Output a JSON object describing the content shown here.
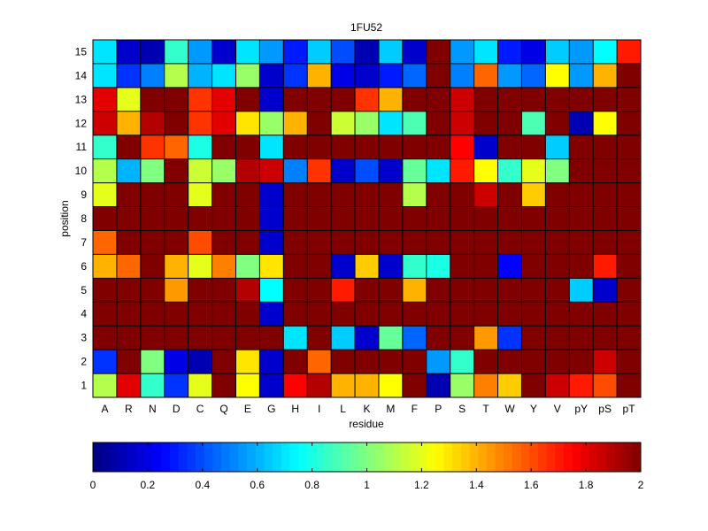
{
  "chart_data": {
    "type": "heatmap",
    "title": "1FU52",
    "xlabel": "residue",
    "ylabel": "position",
    "x_categories": [
      "A",
      "R",
      "N",
      "D",
      "C",
      "Q",
      "E",
      "G",
      "H",
      "I",
      "L",
      "K",
      "M",
      "F",
      "P",
      "S",
      "T",
      "W",
      "Y",
      "V",
      "pY",
      "pS",
      "pT"
    ],
    "y_categories": [
      "1",
      "2",
      "3",
      "4",
      "5",
      "6",
      "7",
      "8",
      "9",
      "10",
      "11",
      "12",
      "13",
      "14",
      "15"
    ],
    "color_range": [
      0,
      2
    ],
    "colormap": "jet",
    "colorbar_ticks": [
      "0",
      "0.2",
      "0.4",
      "0.6",
      "0.8",
      "1",
      "1.2",
      "1.4",
      "1.6",
      "1.8",
      "2"
    ],
    "values": [
      [
        1.1,
        1.8,
        0.85,
        0.35,
        1.2,
        2.0,
        1.25,
        0.15,
        1.75,
        1.9,
        1.4,
        1.4,
        1.25,
        2.0,
        0.1,
        1.05,
        1.5,
        1.35,
        2.0,
        1.85,
        1.7,
        1.6,
        2.0
      ],
      [
        0.35,
        2.0,
        1.0,
        0.2,
        0.1,
        2.0,
        1.3,
        0.15,
        2.0,
        1.55,
        2.0,
        2.0,
        2.0,
        2.0,
        0.55,
        0.85,
        2.0,
        2.0,
        2.0,
        2.0,
        2.0,
        1.85,
        2.0
      ],
      [
        2.0,
        2.0,
        2.0,
        2.0,
        2.0,
        2.0,
        2.0,
        2.0,
        0.7,
        2.0,
        0.65,
        0.15,
        0.95,
        0.45,
        2.0,
        2.0,
        1.45,
        0.35,
        2.0,
        2.0,
        2.0,
        2.0,
        2.0
      ],
      [
        2.0,
        2.0,
        2.0,
        2.0,
        2.0,
        2.0,
        2.0,
        0.15,
        2.0,
        2.0,
        2.0,
        2.0,
        2.0,
        2.0,
        2.0,
        2.0,
        2.0,
        2.0,
        2.0,
        2.0,
        2.0,
        2.0,
        2.0
      ],
      [
        2.0,
        2.0,
        2.0,
        1.45,
        2.0,
        2.0,
        1.9,
        0.75,
        2.0,
        2.0,
        1.7,
        2.0,
        2.0,
        1.4,
        2.0,
        2.0,
        2.0,
        2.0,
        2.0,
        2.0,
        0.65,
        0.15,
        2.0
      ],
      [
        1.4,
        1.55,
        2.0,
        1.4,
        1.2,
        1.5,
        1.0,
        1.3,
        2.0,
        2.0,
        0.15,
        1.35,
        0.15,
        0.85,
        0.8,
        2.0,
        2.0,
        0.25,
        2.0,
        2.0,
        2.0,
        1.7,
        2.0
      ],
      [
        1.55,
        2.0,
        2.0,
        2.0,
        1.6,
        2.0,
        2.0,
        0.15,
        2.0,
        2.0,
        2.0,
        2.0,
        2.0,
        2.0,
        2.0,
        2.0,
        2.0,
        2.0,
        2.0,
        2.0,
        2.0,
        2.0,
        2.0
      ],
      [
        2.0,
        2.0,
        2.0,
        2.0,
        2.0,
        2.0,
        2.0,
        0.15,
        2.0,
        2.0,
        2.0,
        2.0,
        2.0,
        2.0,
        2.0,
        2.0,
        2.0,
        2.0,
        2.0,
        2.0,
        2.0,
        2.0,
        2.0
      ],
      [
        1.2,
        2.0,
        2.0,
        2.0,
        1.2,
        2.0,
        2.0,
        0.15,
        2.0,
        2.0,
        2.0,
        2.0,
        2.0,
        1.1,
        2.0,
        2.0,
        1.85,
        2.0,
        1.35,
        2.0,
        2.0,
        2.0,
        2.0
      ],
      [
        1.1,
        0.6,
        1.0,
        2.0,
        1.15,
        1.05,
        1.9,
        1.85,
        0.5,
        1.65,
        0.15,
        0.4,
        0.15,
        0.95,
        0.7,
        1.7,
        1.25,
        0.85,
        1.2,
        1.0,
        2.0,
        2.0,
        2.0
      ],
      [
        0.85,
        2.0,
        1.65,
        1.55,
        0.8,
        2.0,
        2.0,
        0.7,
        2.0,
        2.0,
        2.0,
        2.0,
        2.0,
        2.0,
        2.0,
        1.75,
        0.15,
        2.0,
        2.0,
        0.65,
        2.0,
        2.0,
        2.0
      ],
      [
        1.85,
        1.4,
        1.9,
        2.0,
        1.65,
        1.8,
        1.3,
        1.05,
        1.4,
        2.0,
        1.15,
        1.05,
        0.7,
        0.9,
        2.0,
        1.85,
        2.0,
        2.0,
        0.9,
        2.0,
        0.1,
        1.25,
        2.0
      ],
      [
        1.8,
        1.2,
        2.0,
        2.0,
        1.65,
        1.8,
        2.0,
        0.15,
        2.0,
        2.0,
        2.0,
        1.65,
        1.4,
        2.0,
        2.0,
        1.85,
        2.0,
        2.0,
        2.0,
        2.0,
        2.0,
        2.0,
        2.0
      ],
      [
        0.7,
        0.35,
        0.5,
        1.1,
        0.6,
        0.7,
        1.05,
        0.15,
        0.35,
        1.4,
        0.2,
        0.15,
        0.3,
        0.45,
        2.0,
        0.5,
        1.55,
        0.55,
        0.45,
        1.25,
        0.55,
        1.4,
        2.0
      ],
      [
        0.7,
        0.15,
        0.1,
        0.85,
        0.55,
        0.15,
        0.7,
        0.55,
        0.3,
        0.65,
        0.4,
        0.1,
        0.65,
        0.15,
        2.0,
        0.55,
        0.7,
        0.3,
        0.2,
        0.65,
        0.55,
        0.75,
        1.7
      ]
    ]
  }
}
